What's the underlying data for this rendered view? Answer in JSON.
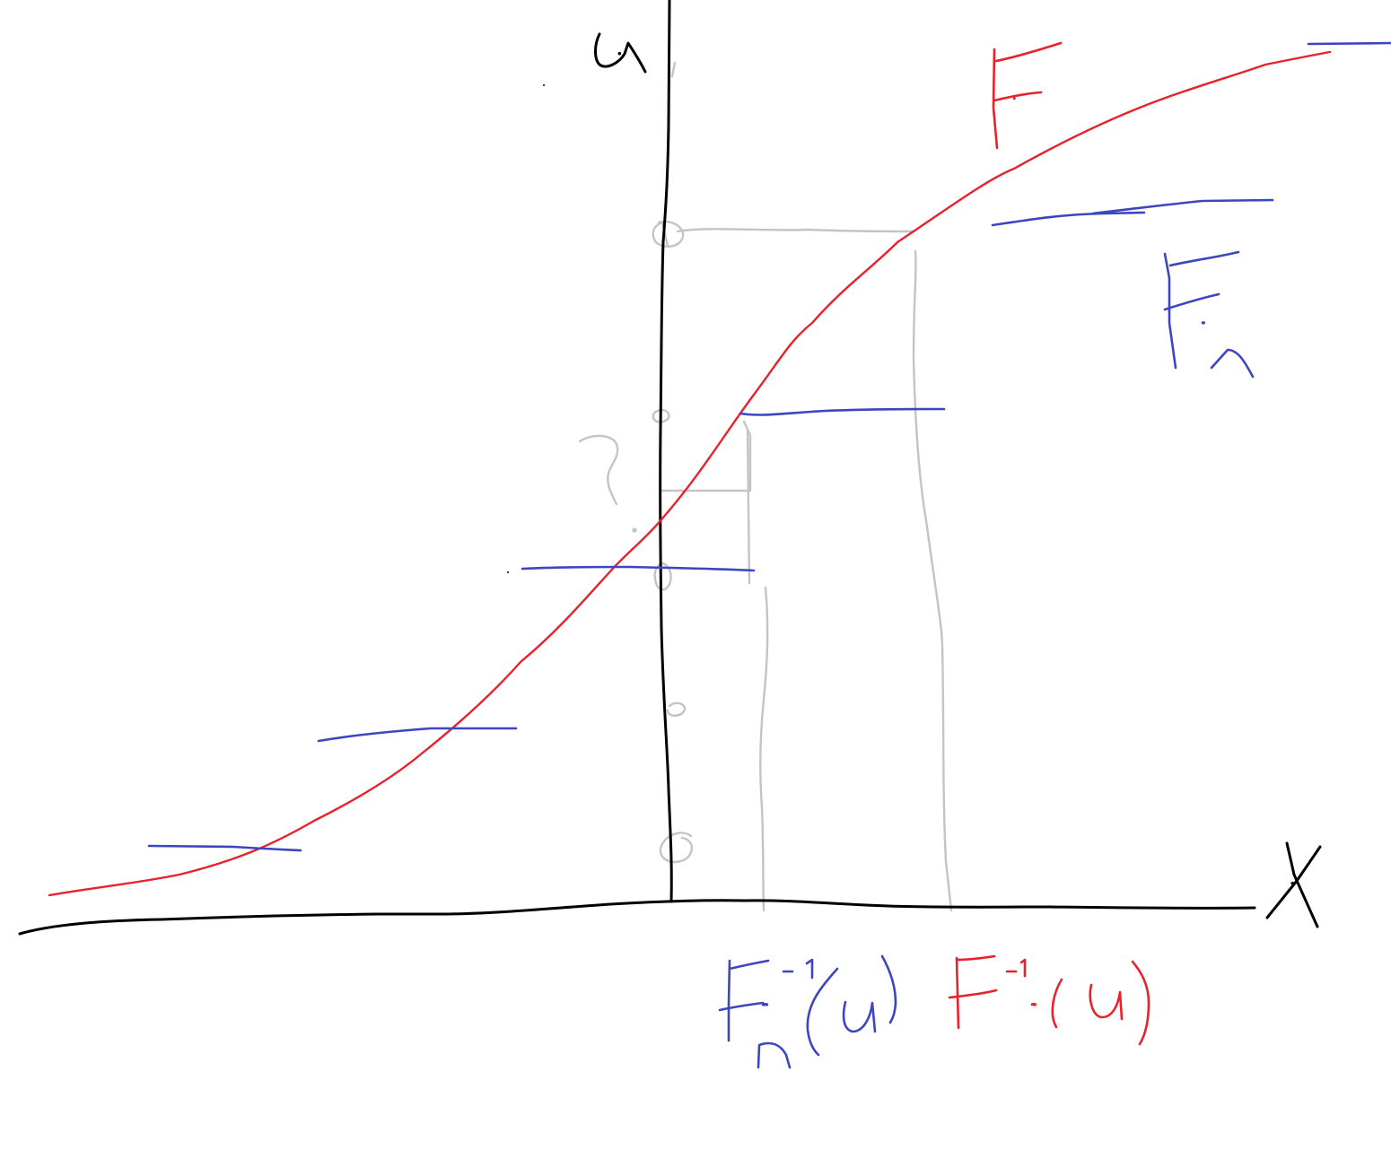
{
  "labels": {
    "y_axis": "u",
    "x_axis": "X",
    "true_cdf": "F",
    "empirical_cdf": "F_n",
    "question_mark": "?",
    "empirical_quantile": "F_n^-1(u)",
    "true_quantile": "F^-1(u)"
  },
  "colors": {
    "axes": "#000000",
    "true_cdf": "#e8222c",
    "empirical_cdf": "#3c46c0",
    "guides": "#c8c8c8",
    "background": "#ffffff"
  }
}
